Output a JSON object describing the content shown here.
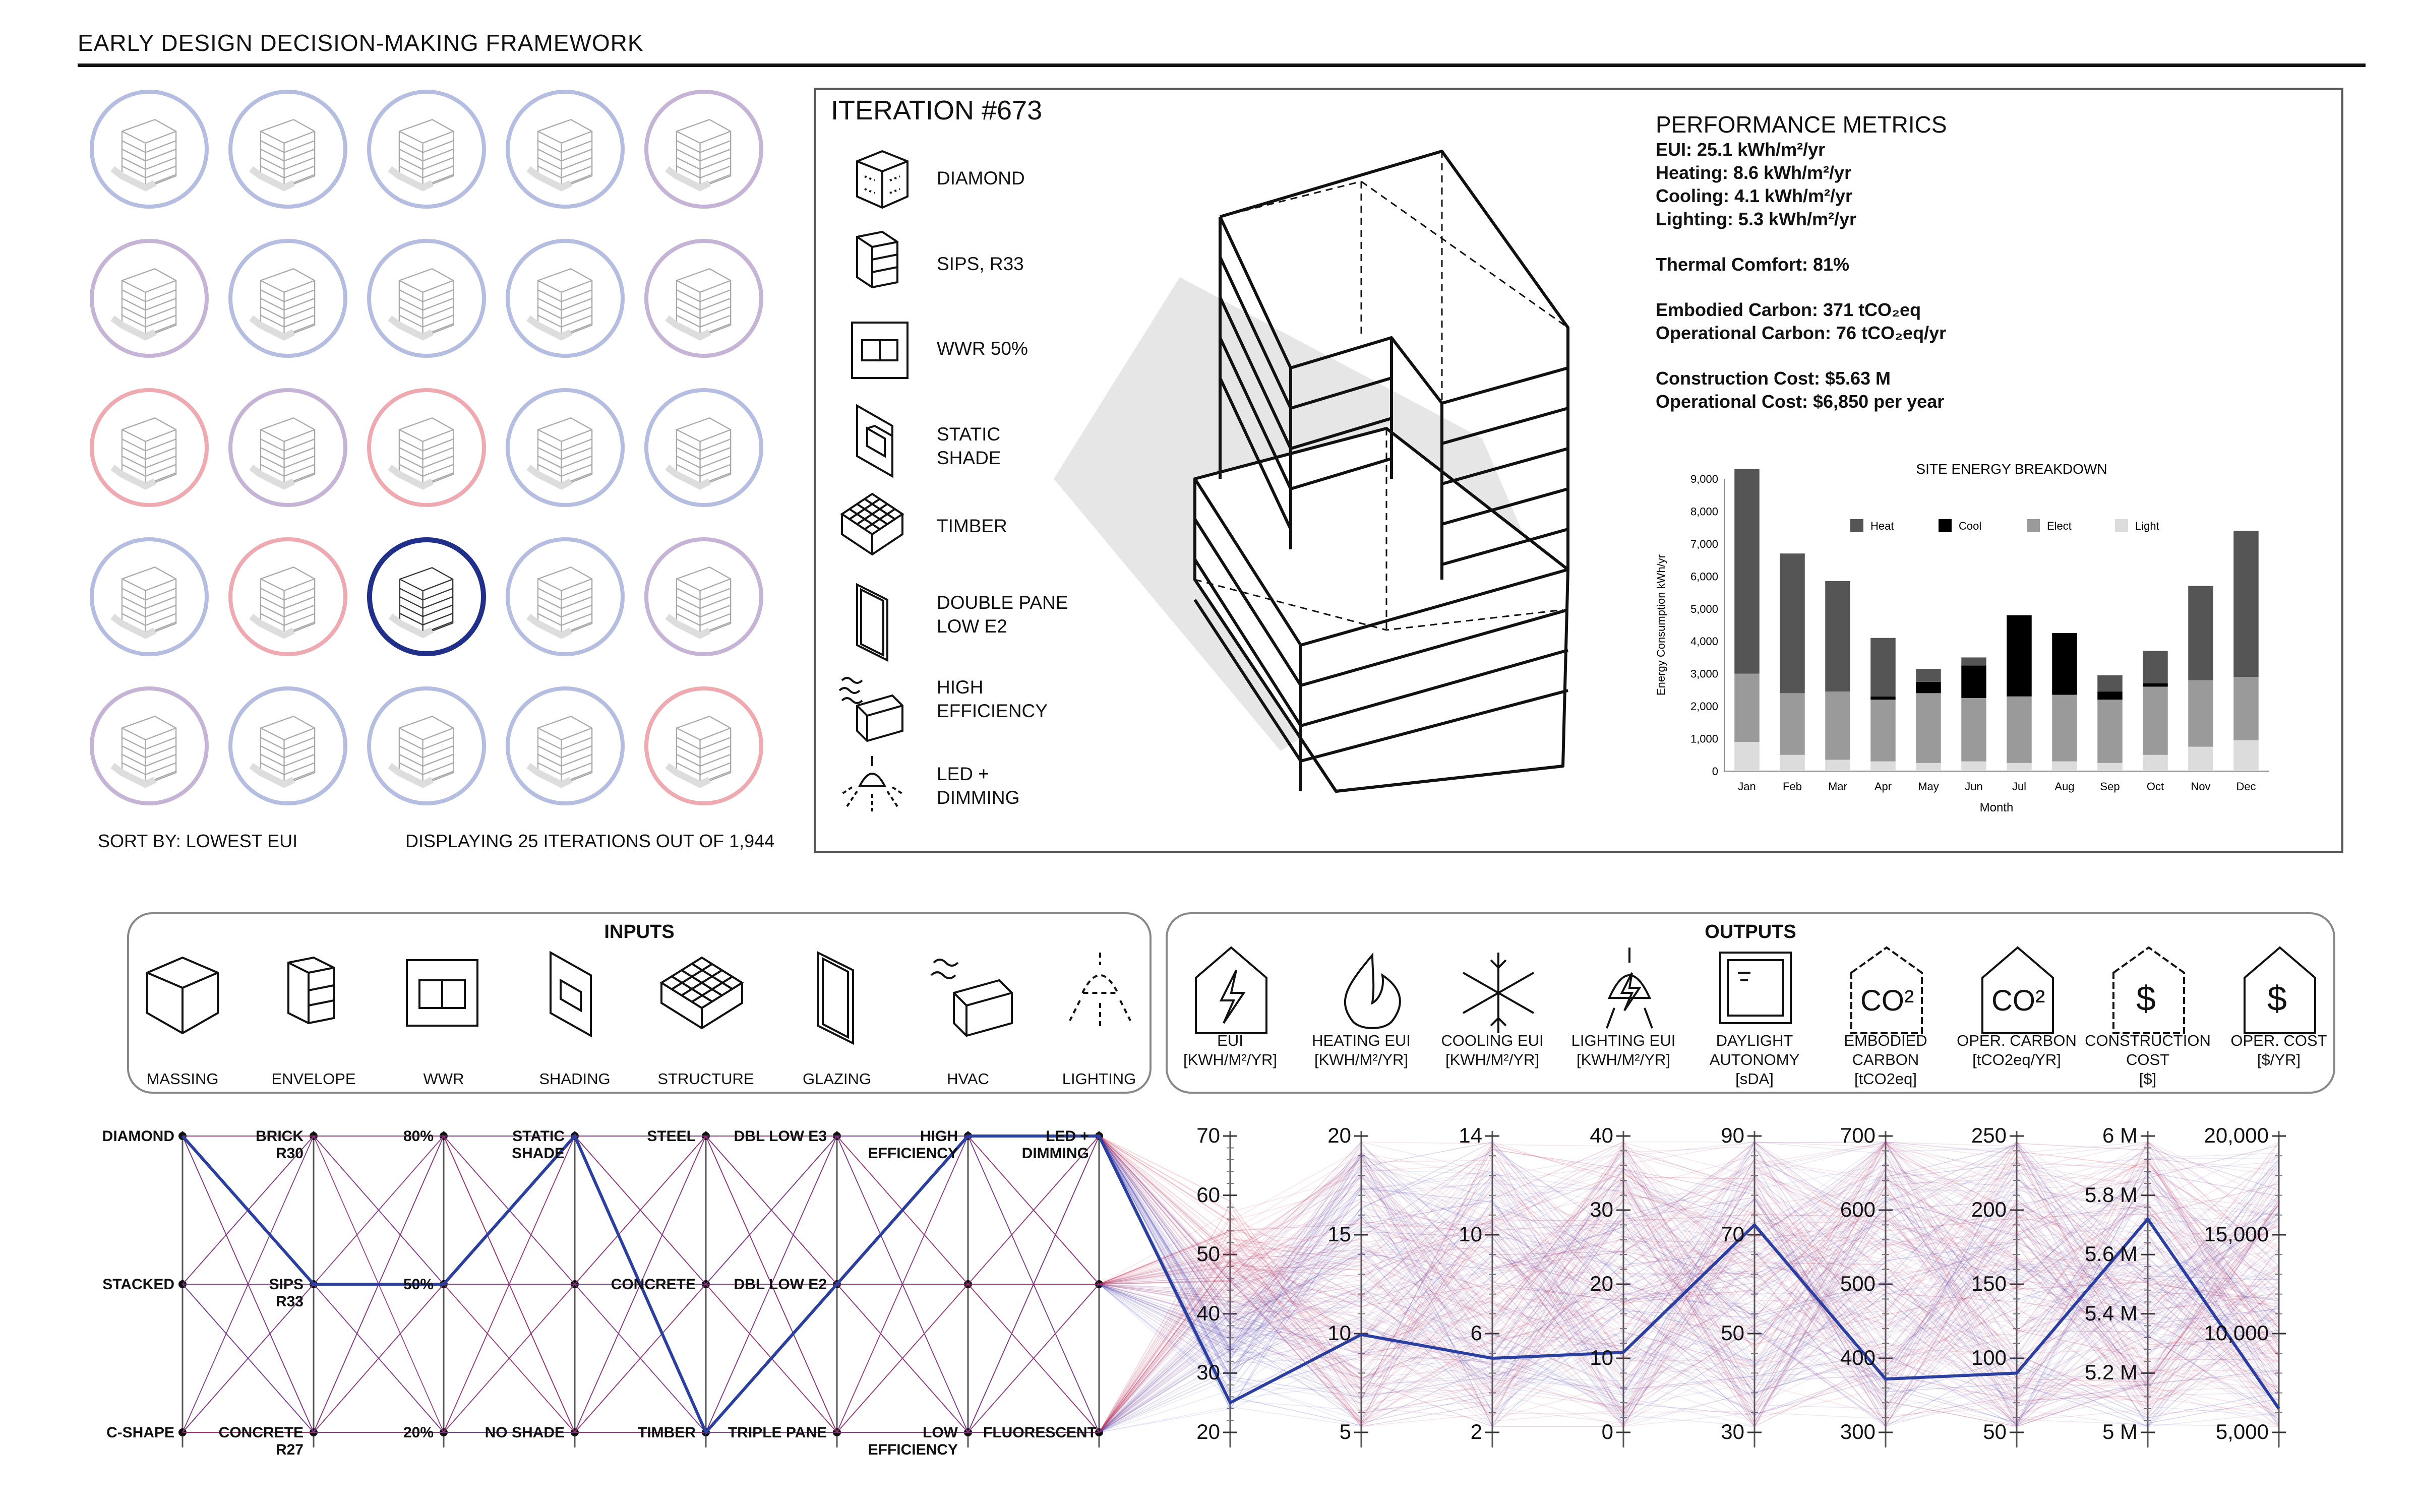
{
  "page": {
    "title": "EARLY DESIGN DECISION-MAKING FRAMEWORK"
  },
  "gallery": {
    "sort_label": "SORT BY: LOWEST EUI",
    "display_label": "DISPLAYING 25 ITERATIONS OUT OF 1,944",
    "ring_tints": [
      "b",
      "b",
      "b",
      "b",
      "p",
      "p",
      "b",
      "b",
      "b",
      "p",
      "r",
      "p",
      "r",
      "b",
      "b",
      "b",
      "r",
      "s",
      "b",
      "p",
      "p",
      "b",
      "b",
      "b",
      "r"
    ]
  },
  "iteration": {
    "title": "ITERATION #673",
    "options": [
      "DIAMOND",
      "SIPS, R33",
      "WWR 50%",
      "STATIC\nSHADE",
      "TIMBER",
      "DOUBLE PANE\nLOW E2",
      "HIGH\nEFFICIENCY",
      "LED +\nDIMMING"
    ],
    "metrics_title": "PERFORMANCE METRICS",
    "metrics": {
      "eui": "EUI: 25.1 kWh/m²/yr",
      "heating": "Heating: 8.6 kWh/m²/yr",
      "cooling": "Cooling: 4.1 kWh/m²/yr",
      "lighting": "Lighting: 5.3 kWh/m²/yr",
      "comfort": "Thermal Comfort: 81%",
      "embodied": "Embodied Carbon: 371 tCO₂eq",
      "operational_carbon": "Operational Carbon: 76 tCO₂eq/yr",
      "construction_cost": "Construction Cost: $5.63 M",
      "operational_cost": "Operational Cost: $6,850 per year"
    }
  },
  "chart_data": {
    "type": "bar",
    "title": "SITE ENERGY BREAKDOWN",
    "xlabel": "Month",
    "ylabel": "Energy Consumption kWh/yr",
    "ylim": [
      0,
      9000
    ],
    "yticks": [
      "9,000",
      "8,000",
      "7,000",
      "6,000",
      "5,000",
      "4,000",
      "3,000",
      "2,000",
      "1,000",
      "0"
    ],
    "categories": [
      "Jan",
      "Feb",
      "Mar",
      "Apr",
      "May",
      "Jun",
      "Jul",
      "Aug",
      "Sep",
      "Oct",
      "Nov",
      "Dec"
    ],
    "stacked": true,
    "series": [
      {
        "name": "Light",
        "color": "#dcdcdc",
        "values": [
          900,
          500,
          350,
          300,
          250,
          300,
          250,
          300,
          250,
          500,
          750,
          950
        ]
      },
      {
        "name": "Elect",
        "color": "#9a9a9a",
        "values": [
          2100,
          1900,
          2100,
          1900,
          2150,
          1950,
          2050,
          2050,
          1950,
          2100,
          2050,
          1950
        ]
      },
      {
        "name": "Cool",
        "color": "#000000",
        "values": [
          0,
          0,
          0,
          100,
          350,
          1000,
          2500,
          1900,
          250,
          100,
          0,
          0
        ]
      },
      {
        "name": "Heat",
        "color": "#555555",
        "values": [
          6300,
          4300,
          3400,
          1800,
          400,
          250,
          0,
          0,
          500,
          1000,
          2900,
          4500
        ]
      }
    ],
    "legend_order": [
      "Heat",
      "Cool",
      "Elect",
      "Light"
    ],
    "legend_position": "top"
  },
  "inputs": {
    "title": "INPUTS",
    "labels": [
      "MASSING",
      "ENVELOPE",
      "WWR",
      "SHADING",
      "STRUCTURE",
      "GLAZING",
      "HVAC",
      "LIGHTING"
    ]
  },
  "outputs": {
    "title": "OUTPUTS",
    "labels": [
      "EUI\n[KWH/M²/YR]",
      "HEATING EUI\n[KWH/M²/YR]",
      "COOLING EUI\n[KWH/M²/YR]",
      "LIGHTING EUI\n[KWH/M²/YR]",
      "DAYLIGHT\nAUTONOMY\n[sDA]",
      "EMBODIED\nCARBON\n[tCO2eq]",
      "OPER. CARBON\n[tCO2eq/YR]",
      "CONSTRUCTION\nCOST\n[$]",
      "OPER. COST\n[$/YR]"
    ]
  },
  "parallel": {
    "input_levels": [
      [
        "DIAMOND",
        "STACKED",
        "C-SHAPE"
      ],
      [
        "BRICK\nR30",
        "SIPS\nR33",
        "CONCRETE\nR27"
      ],
      [
        "80%",
        "50%",
        "20%"
      ],
      [
        "STATIC\nSHADE",
        "",
        "NO SHADE"
      ],
      [
        "STEEL",
        "CONCRETE",
        "TIMBER"
      ],
      [
        "DBL LOW E3",
        "DBL LOW E2",
        "TRIPLE PANE"
      ],
      [
        "HIGH\nEFFICIENCY",
        "",
        "LOW\nEFFICIENCY"
      ],
      [
        "LED +\nDIMMING",
        "",
        "FLUORESCENT"
      ]
    ],
    "output_ticks": [
      [
        "70",
        "60",
        "50",
        "40",
        "30",
        "20"
      ],
      [
        "20",
        "15",
        "10",
        "5"
      ],
      [
        "14",
        "10",
        "6",
        "2"
      ],
      [
        "40",
        "30",
        "20",
        "10",
        "0"
      ],
      [
        "90",
        "70",
        "50",
        "30"
      ],
      [
        "700",
        "600",
        "500",
        "400",
        "300"
      ],
      [
        "250",
        "200",
        "150",
        "100",
        "50"
      ],
      [
        "6 M",
        "5.8 M",
        "5.6 M",
        "5.4 M",
        "5.2 M",
        "5 M"
      ],
      [
        "20,000",
        "15,000",
        "10,000",
        "5,000"
      ]
    ]
  }
}
